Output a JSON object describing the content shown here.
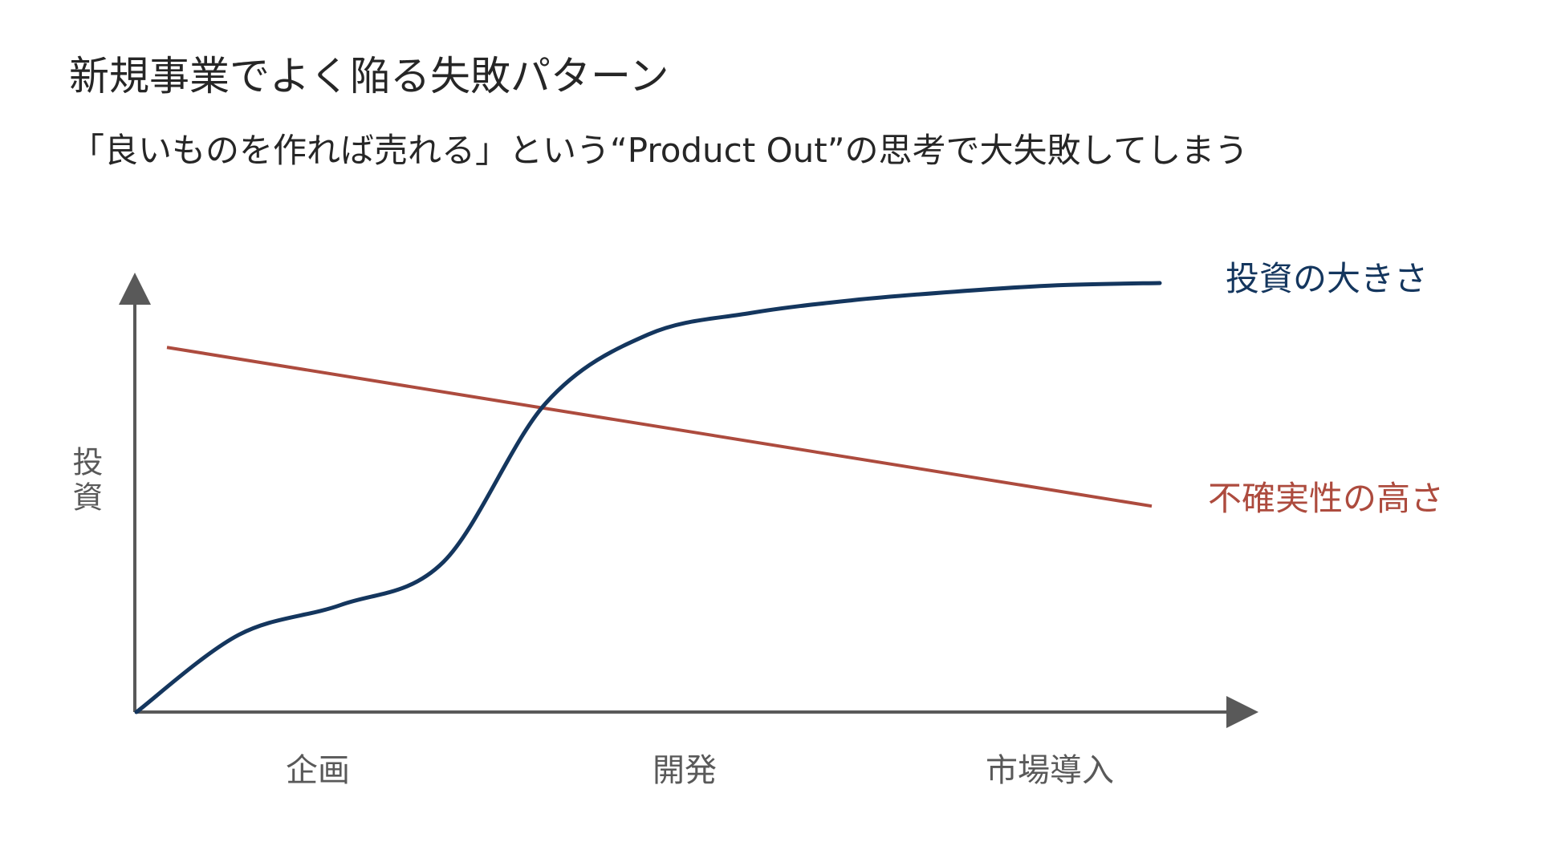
{
  "slide": {
    "title": "新規事業でよく陥る失敗パターン",
    "subtitle": "「良いものを作れば売れる」という“Product Out”の思考で大失敗してしまう"
  },
  "chart_data": {
    "type": "line",
    "title": "",
    "xlabel": "",
    "ylabel": "投資",
    "categories": [
      "企画",
      "開発",
      "市場導入"
    ],
    "grid": false,
    "legend": "direct labels at right end of each line",
    "series": [
      {
        "name": "投資の大きさ",
        "color": "#14365e",
        "shape": "s-curve rising",
        "x": [
          0.0,
          0.1,
          0.2,
          0.3,
          0.4,
          0.5,
          0.6,
          0.7,
          0.8,
          0.9,
          1.0
        ],
        "values": [
          0.0,
          0.18,
          0.25,
          0.35,
          0.72,
          0.88,
          0.93,
          0.96,
          0.98,
          0.995,
          1.0
        ]
      },
      {
        "name": "不確実性の高さ",
        "color": "#ad4b3e",
        "shape": "linear decreasing",
        "x": [
          0.0,
          1.0
        ],
        "values": [
          0.85,
          0.48
        ]
      }
    ],
    "axis_color": "#595959"
  }
}
